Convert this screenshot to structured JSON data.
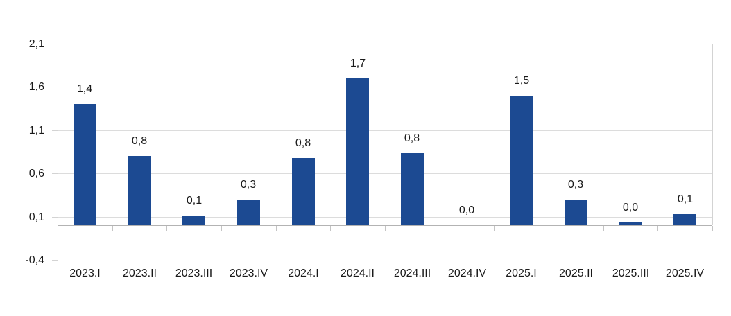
{
  "chart_data": {
    "type": "bar",
    "title": "",
    "xlabel": "",
    "ylabel": "",
    "categories": [
      "2023.I",
      "2023.II",
      "2023.III",
      "2023.IV",
      "2024.I",
      "2024.II",
      "2024.III",
      "2024.IV",
      "2025.I",
      "2025.II",
      "2025.III",
      "2025.IV"
    ],
    "values": [
      1.4,
      0.8,
      0.1,
      0.3,
      0.8,
      1.7,
      0.8,
      0.0,
      1.5,
      0.3,
      0.0,
      0.1
    ],
    "value_labels": [
      "1,4",
      "0,8",
      "0,1",
      "0,3",
      "0,8",
      "1,7",
      "0,8",
      "0,0",
      "1,5",
      "0,3",
      "0,0",
      "0,1"
    ],
    "draw_values": [
      1.4,
      0.8,
      0.11,
      0.3,
      0.78,
      1.7,
      0.83,
      0.0,
      1.5,
      0.3,
      0.03,
      0.13
    ],
    "y_ticks": [
      {
        "label": "2,1",
        "value": 2.1
      },
      {
        "label": "1,6",
        "value": 1.6
      },
      {
        "label": "1,1",
        "value": 1.1
      },
      {
        "label": "0,6",
        "value": 0.6
      },
      {
        "label": "0,1",
        "value": 0.1
      },
      {
        "label": "-0,4",
        "value": -0.4
      }
    ],
    "gridline_values": [
      2.1,
      1.6,
      1.1,
      0.6,
      0.1
    ],
    "ylim": [
      -0.4,
      2.1
    ],
    "grid": "horizontal",
    "legend": "none",
    "decimal_separator": ",",
    "colors": {
      "bar": "#1c4a92",
      "gridline": "#dcdcdc",
      "zero_line": "#b3b3b3",
      "axis": "#d3d3d3",
      "text": "#1a1a1a",
      "background": "#ffffff"
    }
  }
}
